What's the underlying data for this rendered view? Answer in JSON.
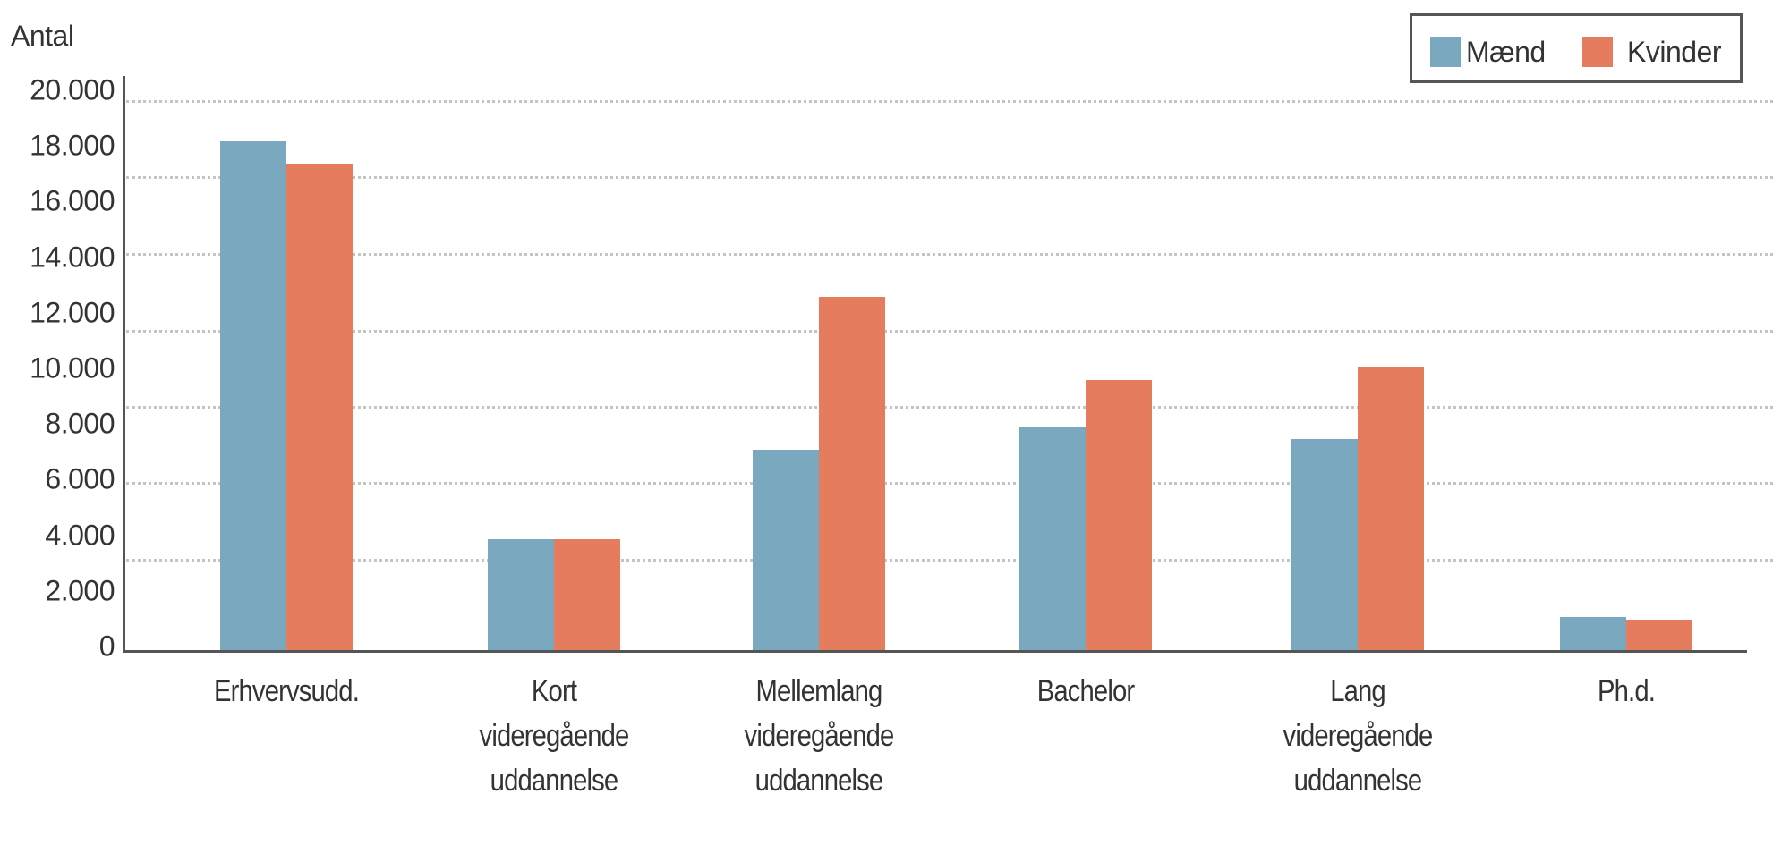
{
  "chart_data": {
    "type": "bar",
    "title": "",
    "xlabel": "",
    "ylabel": "Antal",
    "ylim": [
      0,
      20000
    ],
    "y_ticks": [
      "0",
      "2.000",
      "4.000",
      "6.000",
      "8.000",
      "10.000",
      "12.000",
      "14.000",
      "16.000",
      "18.000",
      "20.000"
    ],
    "y_tick_values": [
      0,
      2000,
      4000,
      6000,
      8000,
      10000,
      12000,
      14000,
      16000,
      18000,
      20000
    ],
    "grid": true,
    "legend_position": "top-right",
    "categories": [
      "Erhvervsudd.",
      "Kort videregående uddannelse",
      "Mellemlang videregående uddannelse",
      "Bachelor",
      "Lang videregående uddannelse",
      "Ph.d."
    ],
    "category_lines": [
      [
        "Erhvervsudd."
      ],
      [
        "Kort",
        "videregående",
        "uddannelse"
      ],
      [
        "Mellemlang",
        "videregående",
        "uddannelse"
      ],
      [
        "Bachelor"
      ],
      [
        "Lang",
        "videregående",
        "uddannelse"
      ],
      [
        "Ph.d."
      ]
    ],
    "series": [
      {
        "name": "Mænd",
        "color": "#79a8bf",
        "values": [
          18300,
          4000,
          7200,
          8000,
          7600,
          1200
        ]
      },
      {
        "name": "Kvinder",
        "color": "#e57c5e",
        "values": [
          17500,
          4000,
          12700,
          9700,
          10200,
          1100
        ]
      }
    ]
  },
  "legend": {
    "items": [
      {
        "label": "Mænd",
        "color": "#79a8bf"
      },
      {
        "label": "Kvinder",
        "color": "#e57c5e"
      }
    ]
  }
}
